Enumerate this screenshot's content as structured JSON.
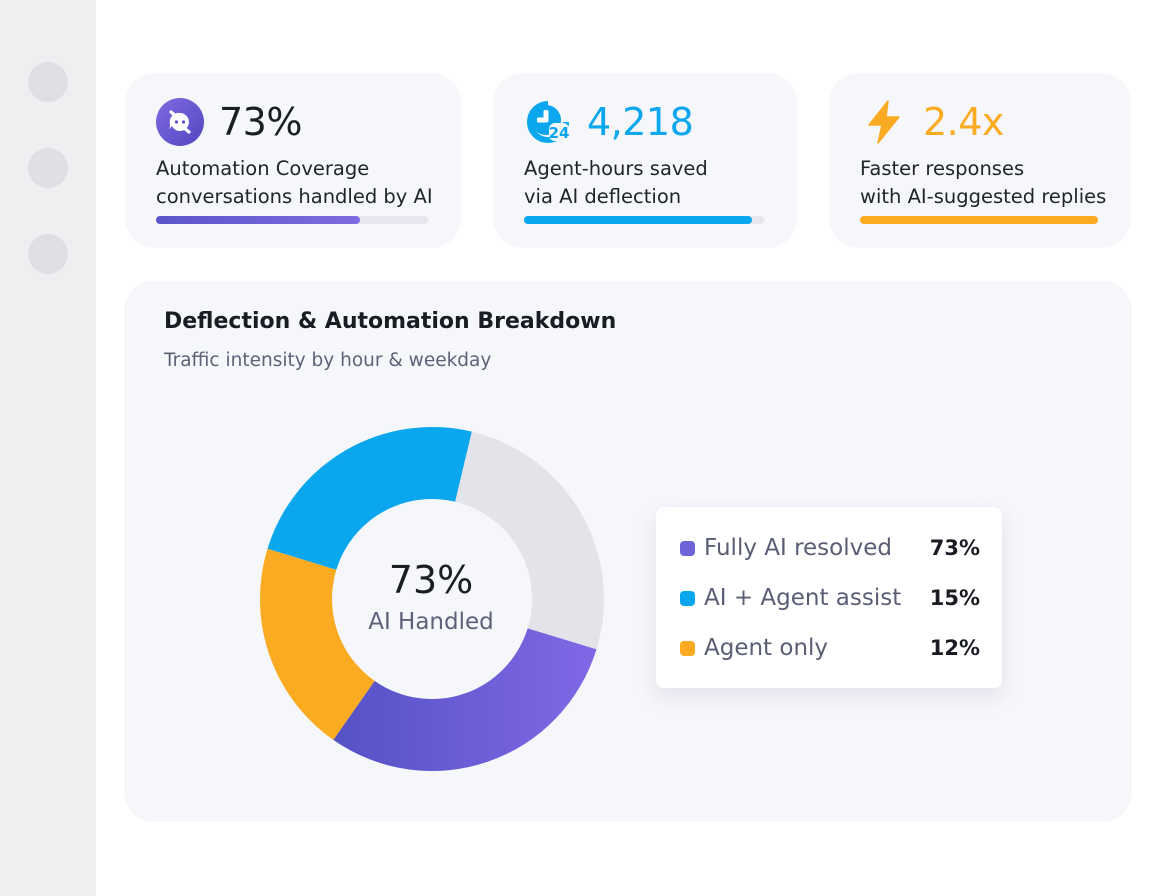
{
  "sidebar": {
    "items": [
      {
        "name": "nav-item-1"
      },
      {
        "name": "nav-item-2"
      },
      {
        "name": "nav-item-3"
      }
    ]
  },
  "kpis": [
    {
      "icon": "ai-chat-icon",
      "value": "73%",
      "line1": "Automation Coverage",
      "line2": "conversations handled by AI",
      "progress": 0.75,
      "color": "#5b55c9",
      "color_end": "#7f6be2",
      "value_color": "#1c1e26"
    },
    {
      "icon": "24-hours-icon",
      "value": "4,218",
      "line1": "Agent-hours saved",
      "line2": "via AI deflection",
      "progress": 0.95,
      "color": "#0aa6ee",
      "value_color": "#0aa6ee"
    },
    {
      "icon": "lightning-bolt-icon",
      "value": "2.4x",
      "line1": "Faster responses",
      "line2": "with AI-suggested replies",
      "progress": 1.0,
      "color": "#fbab22",
      "value_color": "#fbab22"
    }
  ],
  "breakdown": {
    "title": "Deflection & Automation Breakdown",
    "subtitle": "Traffic intensity by hour & weekday",
    "center_value": "73%",
    "center_label": "AI Handled"
  },
  "chart_data": {
    "type": "pie",
    "style": "donut",
    "categories": [
      "Fully AI resolved",
      "AI + Agent assist",
      "Agent only"
    ],
    "values": [
      73,
      15,
      12
    ],
    "labels": [
      "73%",
      "15%",
      "12%"
    ],
    "colors": [
      "#6f63d9",
      "#0aa6ee",
      "#fbab22"
    ],
    "legend_position": "right"
  }
}
